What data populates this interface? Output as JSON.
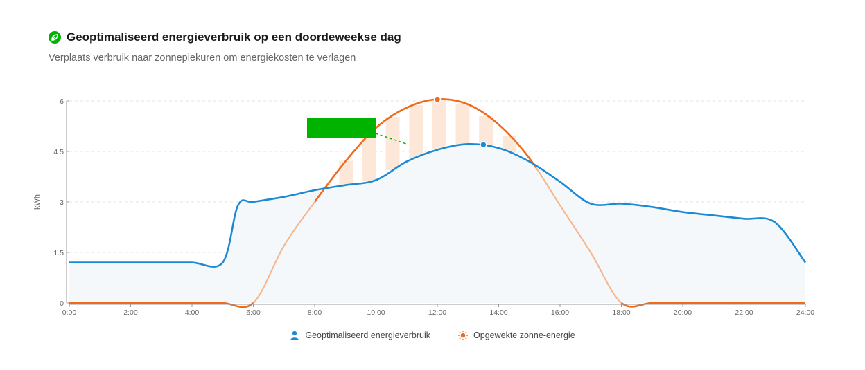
{
  "header": {
    "title": "Geoptimaliseerd energieverbruik op een doordeweekse dag",
    "subtitle": "Verplaats verbruik naar zonnepiekuren om energiekosten te verlagen",
    "title_icon": "leaf-icon"
  },
  "colors": {
    "consumption": "#1a8ad4",
    "solar": "#f06a1a",
    "solar_light": "#f5b88e",
    "area_fill": "#f4f8fb",
    "stripe": "#fde7d8",
    "annotation": "#00b300"
  },
  "chart_data": {
    "type": "area",
    "ylabel": "kWh",
    "xlabel": "",
    "xlim": [
      0,
      24
    ],
    "ylim": [
      0,
      6
    ],
    "x_ticks": [
      "0:00",
      "2:00",
      "4:00",
      "6:00",
      "8:00",
      "10:00",
      "12:00",
      "14:00",
      "16:00",
      "18:00",
      "20:00",
      "22:00",
      "24:00"
    ],
    "y_ticks": [
      "0",
      "1.5",
      "3",
      "4.5",
      "6"
    ],
    "grid": "horizontal dashed",
    "series": [
      {
        "name": "Geoptimaliseerd energieverbruik",
        "icon": "user-icon",
        "x": [
          0,
          1,
          2,
          3,
          4,
          5,
          5.5,
          6,
          7,
          8,
          9,
          10,
          11,
          12,
          13,
          14,
          15,
          16,
          17,
          18,
          19,
          20,
          21,
          22,
          23,
          24
        ],
        "y": [
          1.2,
          1.2,
          1.2,
          1.2,
          1.2,
          1.2,
          2.9,
          3.0,
          3.15,
          3.35,
          3.5,
          3.65,
          4.2,
          4.55,
          4.72,
          4.6,
          4.2,
          3.6,
          2.95,
          2.95,
          2.85,
          2.7,
          2.6,
          2.5,
          2.4,
          1.2
        ],
        "peak_marker": {
          "x": 13.5,
          "y": 4.7
        }
      },
      {
        "name": "Opgewekte zonne-energie",
        "icon": "sun-icon",
        "x": [
          0,
          1,
          2,
          3,
          4,
          5,
          6,
          7,
          8,
          9,
          10,
          11,
          12,
          13,
          14,
          15,
          16,
          17,
          18,
          19,
          20,
          21,
          22,
          23,
          24
        ],
        "y": [
          0,
          0,
          0,
          0,
          0,
          0,
          0,
          1.7,
          3.0,
          4.2,
          5.2,
          5.8,
          6.05,
          5.9,
          5.3,
          4.3,
          2.9,
          1.5,
          0,
          0,
          0,
          0,
          0,
          0,
          0
        ],
        "peak_marker": {
          "x": 12,
          "y": 6.05
        }
      }
    ],
    "highlight_surplus": {
      "from": 8.8,
      "to": 14.2
    },
    "annotation": {
      "label": ""
    }
  }
}
